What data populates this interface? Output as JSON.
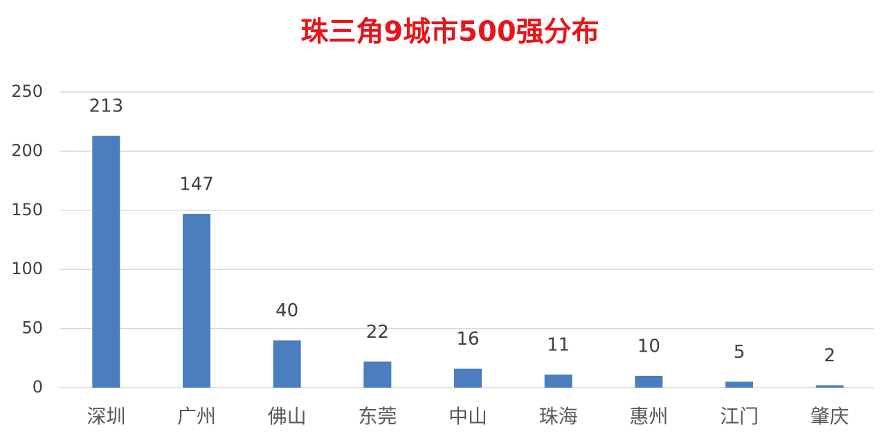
{
  "chart_data": {
    "type": "bar",
    "title": "珠三角9城市500强分布",
    "categories": [
      "深圳",
      "广州",
      "佛山",
      "东莞",
      "中山",
      "珠海",
      "惠州",
      "江门",
      "肇庆"
    ],
    "values": [
      213,
      147,
      40,
      22,
      16,
      11,
      10,
      5,
      2
    ],
    "color": "#4a7ebf",
    "ylim": [
      0,
      250
    ],
    "yticks": [
      0,
      50,
      100,
      150,
      200,
      250
    ],
    "grid": true
  }
}
